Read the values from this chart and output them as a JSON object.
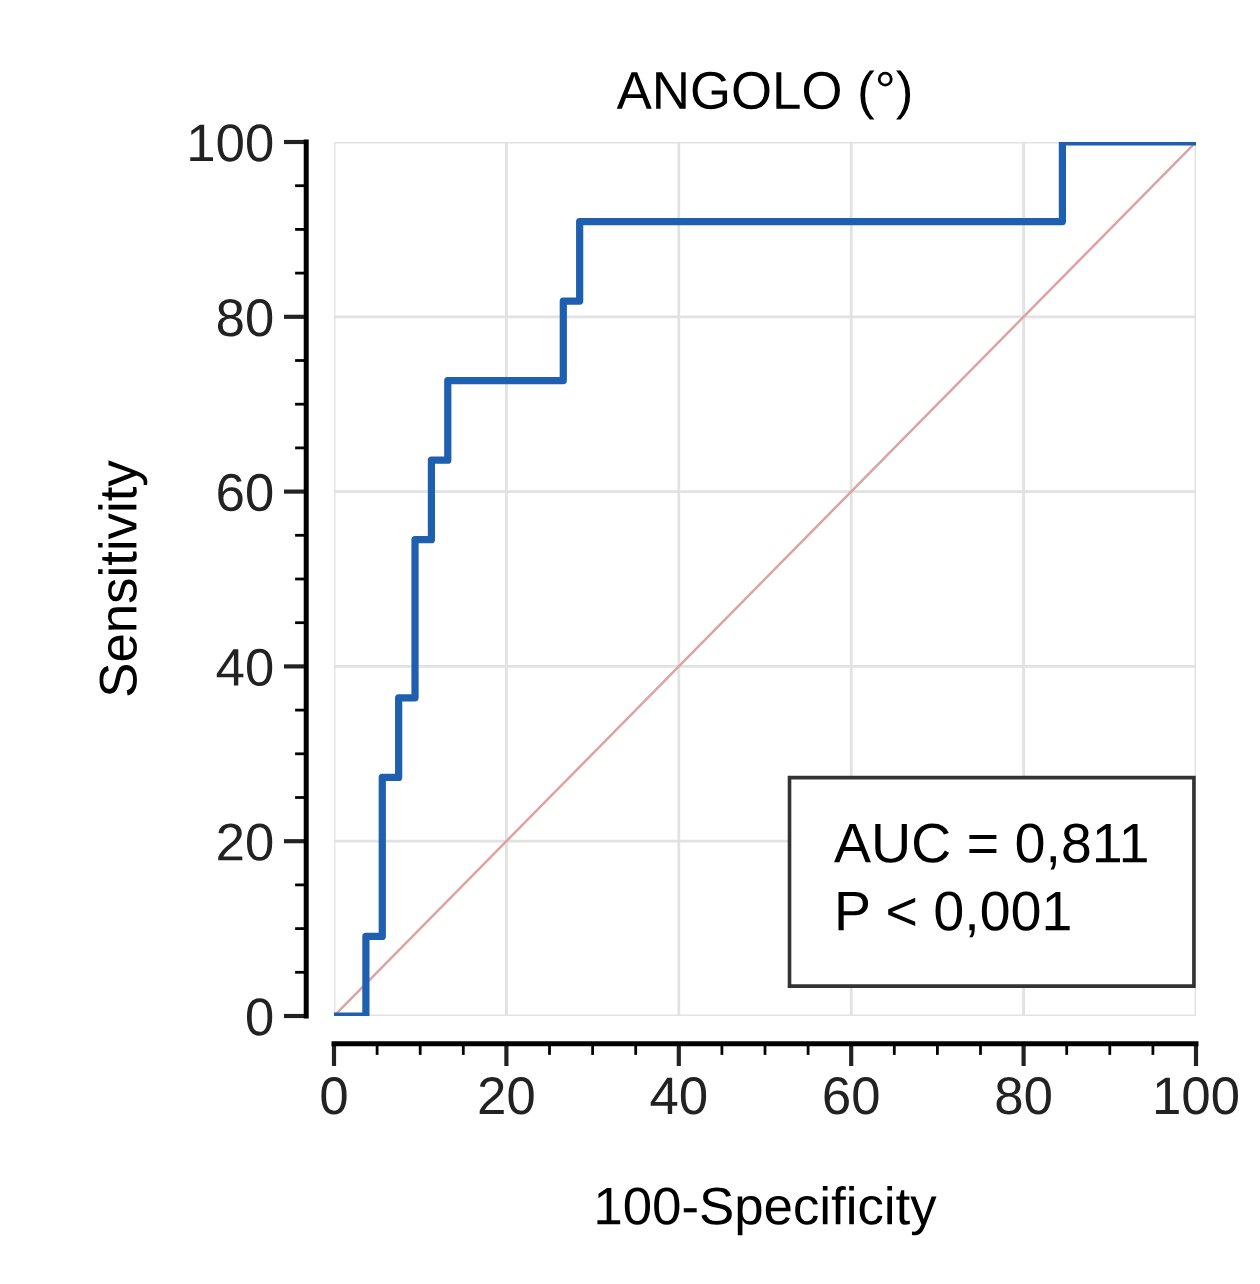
{
  "chart_data": {
    "type": "step",
    "title": "ANGOLO (°)",
    "xlabel": "100-Specificity",
    "ylabel": "Sensitivity",
    "series": [
      {
        "color": "#1f5fb0",
        "x": [
          0,
          3.7,
          5.6,
          7.5,
          9.4,
          11.3,
          13.2,
          26.6,
          28.5,
          84.5,
          100
        ],
        "values": [
          0,
          9.1,
          27.3,
          36.4,
          54.5,
          63.6,
          72.7,
          81.8,
          90.9,
          100,
          100
        ]
      },
      {
        "type": "line",
        "color": "#dca3a0",
        "x": [
          0,
          100
        ],
        "values": [
          0,
          100
        ]
      }
    ],
    "xlim": [
      0,
      100
    ],
    "ylim": [
      0,
      100
    ],
    "xticks": [
      0,
      20,
      40,
      60,
      80,
      100
    ],
    "yticks": [
      0,
      20,
      40,
      60,
      80,
      100
    ],
    "grid": true,
    "annotations": [
      "AUC = 0,811\nP < 0,001"
    ]
  }
}
